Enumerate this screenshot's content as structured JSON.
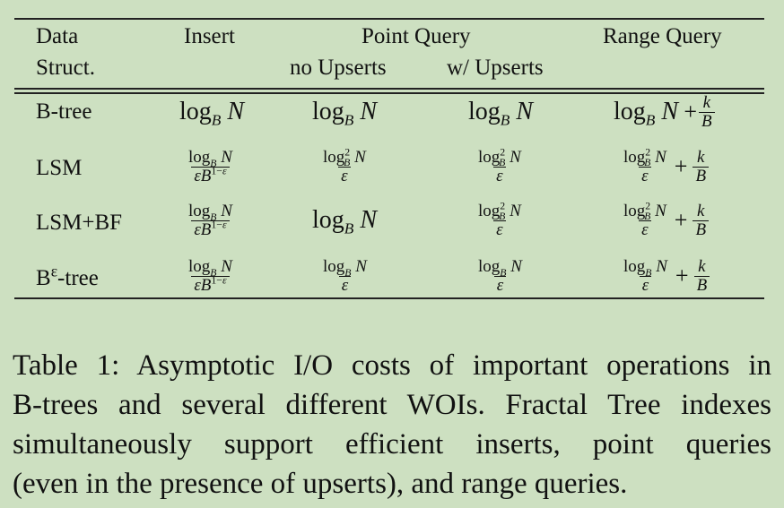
{
  "header": {
    "col_ds": [
      "Data",
      "Struct."
    ],
    "col_insert": "Insert",
    "col_point": "Point Query",
    "col_point_sub1": "no Upserts",
    "col_point_sub2": "w/ Upserts",
    "col_range": "Range Query"
  },
  "rows": [
    {
      "name": "B-tree"
    },
    {
      "name": "LSM"
    },
    {
      "name": "LSM+BF"
    },
    {
      "name_base": "B",
      "name_sup": "ε",
      "name_rest": "-tree"
    }
  ],
  "caption": [
    "Table 1: Asymptotic I/O costs of important operations in",
    "B-trees and several different WOIs. Fractal Tree indexes",
    "simultaneously support efficient inserts, point queries",
    "(even in the presence of upserts), and range queries."
  ]
}
